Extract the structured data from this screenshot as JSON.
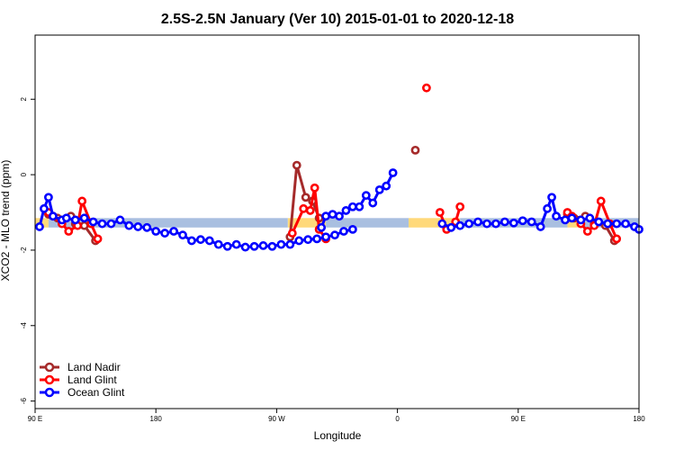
{
  "chart_data": {
    "type": "line",
    "title": "2.5S-2.5N January (Ver 10)   2015-01-01 to 2020-12-18",
    "xlabel": "Longitude",
    "ylabel": "XCO2 - MLO trend (ppm)",
    "xlim": [
      -90,
      180
    ],
    "ylim": [
      -6.2,
      3.7
    ],
    "x_axis_ticks": [
      {
        "value": -90,
        "label": "90 E"
      },
      {
        "value": -36,
        "label": "180"
      },
      {
        "value": 18,
        "label": "90 W"
      },
      {
        "value": 72,
        "label": "0"
      },
      {
        "value": 126,
        "label": "90 E"
      },
      {
        "value": 180,
        "label": "180"
      }
    ],
    "y_axis_ticks": [
      {
        "value": -6,
        "label": "-6"
      },
      {
        "value": -4,
        "label": "-4"
      },
      {
        "value": -2,
        "label": "-2"
      },
      {
        "value": 0,
        "label": "0"
      },
      {
        "value": 2,
        "label": "2"
      }
    ],
    "grid": false,
    "legend_position": "bottom-left",
    "background_band": {
      "y_range": [
        -1.4,
        -1.15
      ],
      "segments": [
        {
          "x_range": [
            -90,
            -84
          ],
          "color": "#ffd97a"
        },
        {
          "x_range": [
            -84,
            23
          ],
          "color": "#a9bfe0"
        },
        {
          "x_range": [
            23,
            40
          ],
          "color": "#ffd97a"
        },
        {
          "x_range": [
            40,
            77
          ],
          "color": "#a9bfe0"
        },
        {
          "x_range": [
            77,
            100
          ],
          "color": "#ffd97a"
        },
        {
          "x_range": [
            100,
            148
          ],
          "color": "#a9bfe0"
        },
        {
          "x_range": [
            148,
            153
          ],
          "color": "#ffd97a"
        },
        {
          "x_range": [
            153,
            180
          ],
          "color": "#a9bfe0"
        }
      ]
    },
    "series": [
      {
        "name": "Land Nadir",
        "color": "#a52a2a",
        "segments": [
          [
            [
              -84,
              -1.05
            ],
            [
              -80,
              -1.15
            ],
            [
              -74,
              -1.1
            ],
            [
              -72,
              -1.3
            ],
            [
              -68,
              -1.35
            ],
            [
              -63,
              -1.75
            ]
          ],
          [
            [
              24,
              -1.65
            ],
            [
              27,
              0.25
            ],
            [
              31,
              -0.6
            ],
            [
              34,
              -0.7
            ],
            [
              37,
              -1.15
            ]
          ],
          [
            [
              80,
              0.65
            ]
          ],
          [
            [
              148,
              -1.05
            ],
            [
              151,
              -1.15
            ],
            [
              156,
              -1.1
            ],
            [
              160,
              -1.3
            ],
            [
              165,
              -1.35
            ],
            [
              169,
              -1.75
            ]
          ]
        ]
      },
      {
        "name": "Land Glint",
        "color": "#ff0000",
        "segments": [
          [
            [
              -84,
              -1.0
            ],
            [
              -82,
              -1.1
            ],
            [
              -78,
              -1.3
            ],
            [
              -75,
              -1.5
            ],
            [
              -71,
              -1.35
            ],
            [
              -69,
              -0.7
            ],
            [
              -65,
              -1.3
            ],
            [
              -62,
              -1.7
            ]
          ],
          [
            [
              25,
              -1.55
            ],
            [
              30,
              -0.9
            ],
            [
              33,
              -0.95
            ],
            [
              35,
              -0.35
            ],
            [
              37,
              -1.45
            ],
            [
              40,
              -1.7
            ]
          ],
          [
            [
              85,
              2.3
            ]
          ],
          [
            [
              91,
              -1.0
            ],
            [
              94,
              -1.45
            ],
            [
              98,
              -1.25
            ],
            [
              100,
              -0.85
            ]
          ],
          [
            [
              148,
              -1.0
            ],
            [
              150,
              -1.1
            ],
            [
              154,
              -1.3
            ],
            [
              157,
              -1.5
            ],
            [
              160,
              -1.35
            ],
            [
              163,
              -0.7
            ],
            [
              167,
              -1.3
            ],
            [
              170,
              -1.7
            ]
          ]
        ]
      },
      {
        "name": "Ocean Glint",
        "color": "#0000ff",
        "segments": [
          [
            [
              -88,
              -1.38
            ],
            [
              -86,
              -0.9
            ],
            [
              -84,
              -0.6
            ],
            [
              -82,
              -1.1
            ],
            [
              -78,
              -1.2
            ],
            [
              -76,
              -1.15
            ],
            [
              -72,
              -1.2
            ],
            [
              -68,
              -1.15
            ],
            [
              -64,
              -1.25
            ],
            [
              -60,
              -1.3
            ],
            [
              -56,
              -1.3
            ],
            [
              -52,
              -1.2
            ],
            [
              -48,
              -1.35
            ],
            [
              -44,
              -1.38
            ],
            [
              -40,
              -1.4
            ],
            [
              -36,
              -1.5
            ],
            [
              -32,
              -1.55
            ],
            [
              -28,
              -1.5
            ],
            [
              -24,
              -1.6
            ],
            [
              -20,
              -1.75
            ],
            [
              -16,
              -1.72
            ],
            [
              -12,
              -1.75
            ],
            [
              -8,
              -1.85
            ],
            [
              -4,
              -1.9
            ],
            [
              0,
              -1.85
            ],
            [
              4,
              -1.92
            ],
            [
              8,
              -1.9
            ],
            [
              12,
              -1.88
            ],
            [
              16,
              -1.9
            ],
            [
              20,
              -1.85
            ],
            [
              24,
              -1.85
            ],
            [
              28,
              -1.75
            ],
            [
              32,
              -1.72
            ],
            [
              36,
              -1.7
            ],
            [
              40,
              -1.65
            ],
            [
              44,
              -1.6
            ],
            [
              48,
              -1.5
            ],
            [
              52,
              -1.45
            ]
          ],
          [
            [
              38,
              -1.4
            ],
            [
              40,
              -1.1
            ],
            [
              43,
              -1.05
            ],
            [
              46,
              -1.1
            ],
            [
              49,
              -0.95
            ],
            [
              52,
              -0.85
            ],
            [
              55,
              -0.85
            ],
            [
              58,
              -0.55
            ],
            [
              61,
              -0.75
            ],
            [
              64,
              -0.4
            ],
            [
              67,
              -0.3
            ],
            [
              70,
              0.05
            ]
          ],
          [
            [
              92,
              -1.3
            ],
            [
              96,
              -1.4
            ],
            [
              100,
              -1.35
            ],
            [
              104,
              -1.3
            ],
            [
              108,
              -1.25
            ],
            [
              112,
              -1.3
            ],
            [
              116,
              -1.3
            ],
            [
              120,
              -1.25
            ],
            [
              124,
              -1.28
            ],
            [
              128,
              -1.22
            ],
            [
              132,
              -1.25
            ],
            [
              136,
              -1.38
            ],
            [
              139,
              -0.9
            ],
            [
              141,
              -0.6
            ],
            [
              143,
              -1.1
            ],
            [
              147,
              -1.2
            ],
            [
              150,
              -1.15
            ],
            [
              154,
              -1.2
            ],
            [
              158,
              -1.15
            ],
            [
              162,
              -1.25
            ],
            [
              166,
              -1.3
            ],
            [
              170,
              -1.3
            ],
            [
              174,
              -1.3
            ],
            [
              178,
              -1.38
            ],
            [
              180,
              -1.45
            ]
          ]
        ]
      }
    ]
  }
}
